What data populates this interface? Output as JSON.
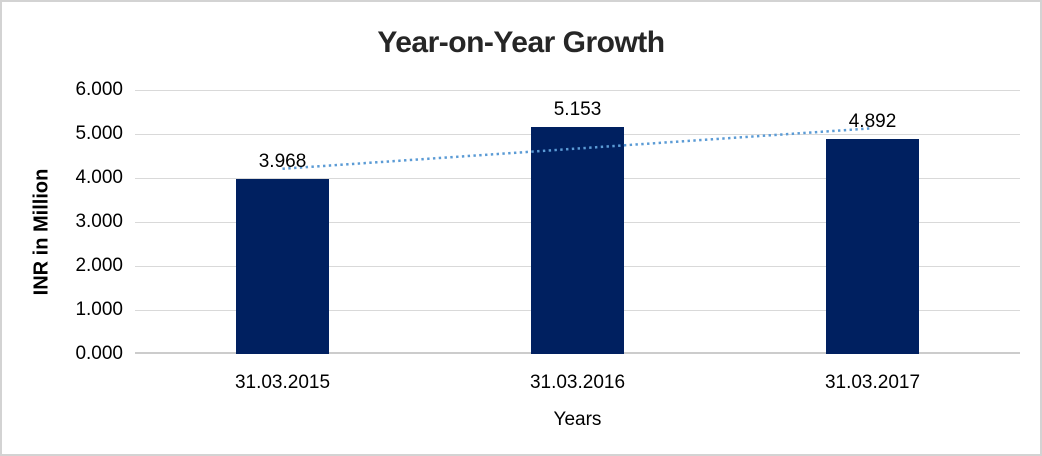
{
  "window": {
    "background": "#ffffff",
    "border_color": "#d3d3d3"
  },
  "chart_data": {
    "type": "bar",
    "title": "Year-on-Year Growth",
    "categories": [
      "31.03.2015",
      "31.03.2016",
      "31.03.2017"
    ],
    "values": [
      3.968,
      5.153,
      4.892
    ],
    "value_labels": [
      "3.968",
      "5.153",
      "4.892"
    ],
    "xlabel": "Years",
    "ylabel": "INR in Million",
    "ylim": [
      0,
      6
    ],
    "ytick_step": 1,
    "ytick_labels": [
      "0.000",
      "1.000",
      "2.000",
      "3.000",
      "4.000",
      "5.000",
      "6.000"
    ],
    "grid": true,
    "legend": "none",
    "bar_color": "#002060",
    "gridline_color": "#d9d9d9",
    "axis_line_color": "#cccccc",
    "text_color": "#000000",
    "title_color": "#262626",
    "trendline": {
      "type": "linear",
      "style": "dotted",
      "color": "#5b9bd5",
      "start_value": 4.21,
      "end_value": 5.13
    }
  }
}
